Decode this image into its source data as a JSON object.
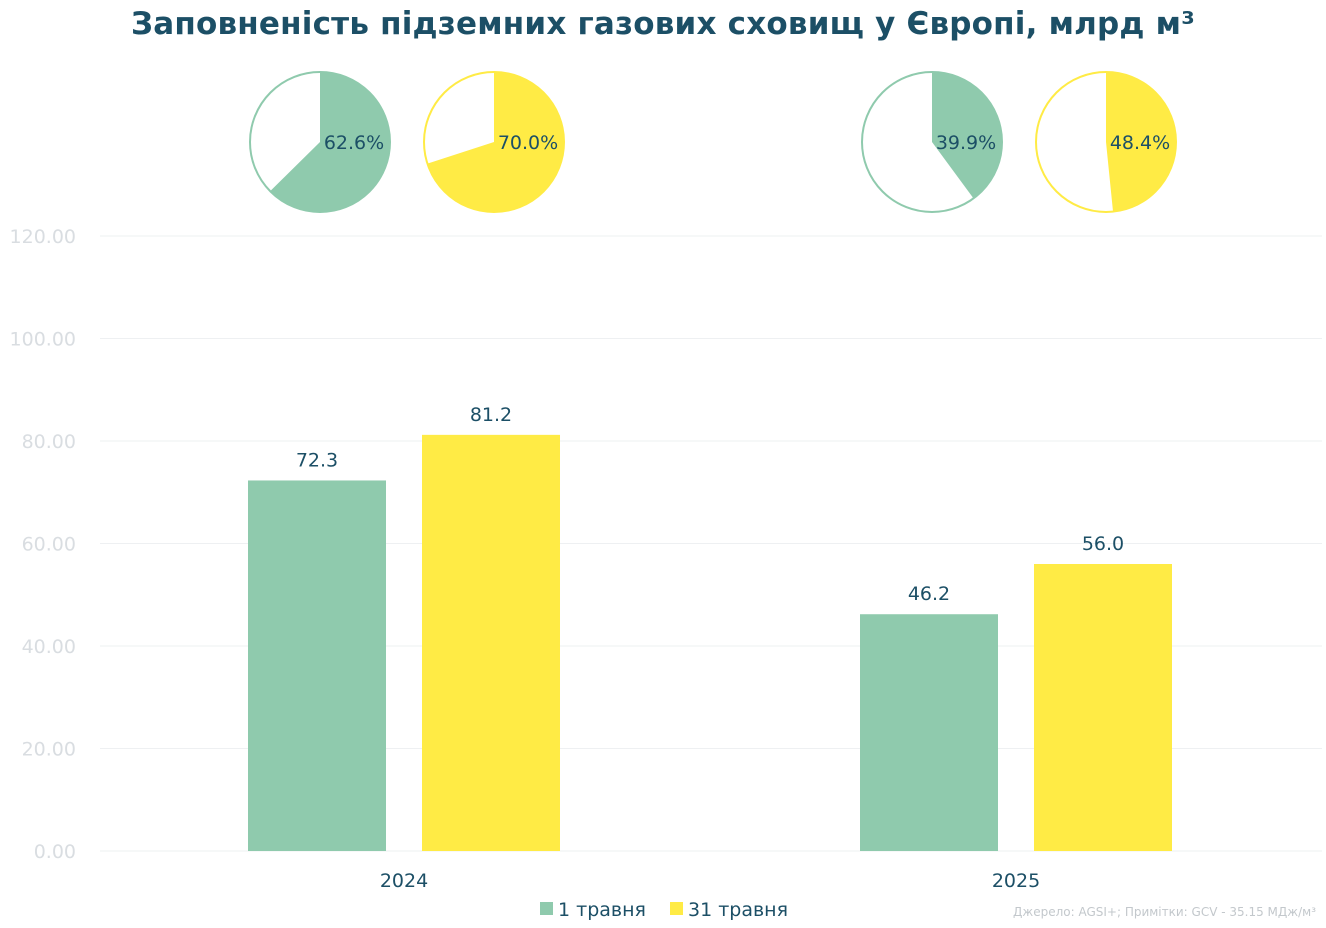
{
  "chart_data": {
    "type": "bar",
    "title": "Заповненість підземних газових сховищ у Європі, млрд м³",
    "categories": [
      "2024",
      "2025"
    ],
    "series": [
      {
        "name": "1 травня",
        "values": [
          72.3,
          46.2
        ],
        "labels": [
          "72.3",
          "46.2"
        ],
        "color": "#8fcaad",
        "fill_pct": [
          62.6,
          39.9
        ],
        "fill_labels": [
          "62.6%",
          "39.9%"
        ]
      },
      {
        "name": "31 травня",
        "values": [
          81.2,
          56.0
        ],
        "labels": [
          "81.2",
          "56.0"
        ],
        "color": "#ffeb45",
        "fill_pct": [
          70.0,
          48.4
        ],
        "fill_labels": [
          "70.0%",
          "48.4%"
        ]
      }
    ],
    "ylim": [
      0,
      120
    ],
    "yticks": [
      "0.00",
      "20.00",
      "40.00",
      "60.00",
      "80.00",
      "100.00",
      "120.00"
    ],
    "xlabel": "",
    "ylabel": "",
    "grid": true,
    "legend_position": "bottom",
    "source": "Джерело: AGSI+; Примітки: GCV - 35.15 МДж/м³"
  }
}
